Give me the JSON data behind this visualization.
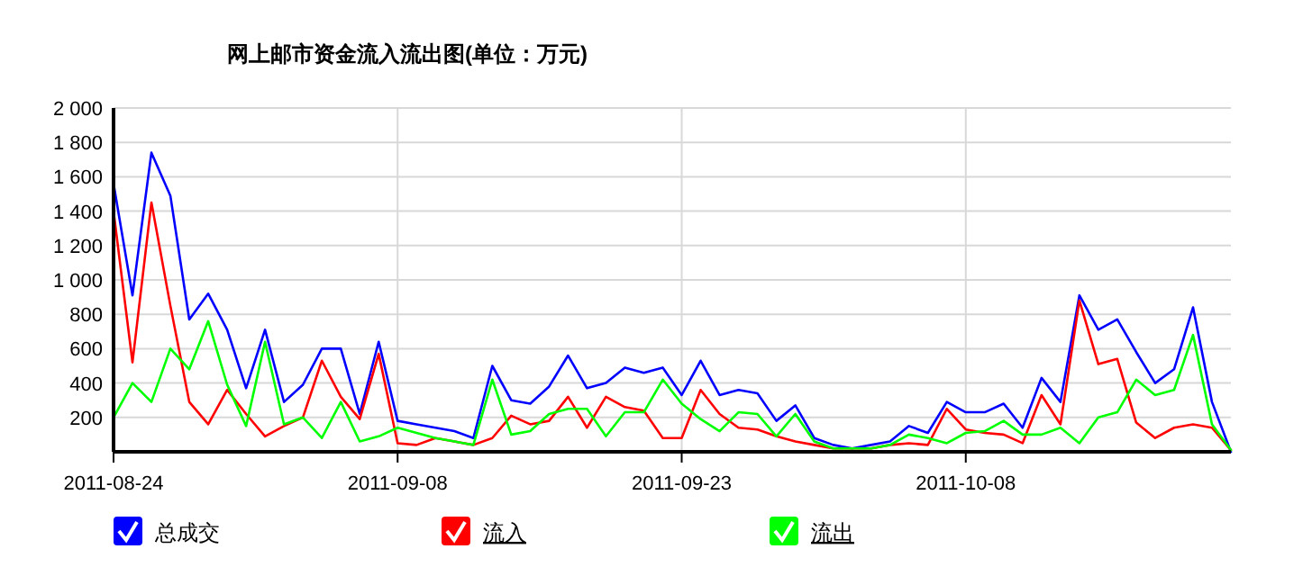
{
  "chart_data": {
    "type": "line",
    "title": "网上邮市资金流入流出图(单位：万元)",
    "x": [
      "2011-08-24",
      "2011-08-25",
      "2011-08-26",
      "2011-08-27",
      "2011-08-28",
      "2011-08-29",
      "2011-08-30",
      "2011-08-31",
      "2011-09-01",
      "2011-09-02",
      "2011-09-03",
      "2011-09-04",
      "2011-09-05",
      "2011-09-06",
      "2011-09-07",
      "2011-09-08",
      "2011-09-09",
      "2011-09-10",
      "2011-09-11",
      "2011-09-12",
      "2011-09-13",
      "2011-09-14",
      "2011-09-15",
      "2011-09-16",
      "2011-09-17",
      "2011-09-18",
      "2011-09-19",
      "2011-09-20",
      "2011-09-21",
      "2011-09-22",
      "2011-09-23",
      "2011-09-24",
      "2011-09-25",
      "2011-09-26",
      "2011-09-27",
      "2011-09-28",
      "2011-09-29",
      "2011-09-30",
      "2011-10-01",
      "2011-10-02",
      "2011-10-03",
      "2011-10-04",
      "2011-10-05",
      "2011-10-06",
      "2011-10-07",
      "2011-10-08",
      "2011-10-09",
      "2011-10-10",
      "2011-10-11",
      "2011-10-12",
      "2011-10-13",
      "2011-10-14",
      "2011-10-15",
      "2011-10-16",
      "2011-10-17",
      "2011-10-18",
      "2011-10-19",
      "2011-10-20",
      "2011-10-21",
      "2011-10-22"
    ],
    "series": [
      {
        "name": "总成交",
        "color": "#0000ff",
        "values": [
          1560,
          910,
          1740,
          1490,
          770,
          920,
          710,
          370,
          710,
          290,
          390,
          600,
          600,
          220,
          640,
          180,
          160,
          140,
          120,
          80,
          500,
          300,
          280,
          380,
          560,
          370,
          400,
          490,
          460,
          490,
          330,
          530,
          330,
          360,
          340,
          180,
          270,
          80,
          40,
          20,
          40,
          60,
          150,
          110,
          290,
          230,
          230,
          280,
          140,
          430,
          290,
          910,
          710,
          770,
          580,
          400,
          480,
          840,
          290,
          0
        ]
      },
      {
        "name": "流入",
        "color": "#ff0000",
        "values": [
          1400,
          520,
          1450,
          850,
          290,
          160,
          360,
          220,
          90,
          150,
          200,
          530,
          320,
          190,
          570,
          50,
          40,
          80,
          60,
          40,
          80,
          210,
          160,
          180,
          320,
          140,
          320,
          260,
          240,
          80,
          80,
          360,
          220,
          140,
          130,
          90,
          60,
          40,
          20,
          20,
          20,
          40,
          50,
          40,
          250,
          130,
          110,
          100,
          50,
          330,
          160,
          880,
          510,
          540,
          170,
          80,
          140,
          160,
          140,
          10
        ]
      },
      {
        "name": "流出",
        "color": "#00ff00",
        "values": [
          200,
          400,
          290,
          600,
          480,
          760,
          390,
          150,
          640,
          160,
          200,
          80,
          290,
          60,
          90,
          140,
          110,
          80,
          60,
          40,
          420,
          100,
          120,
          220,
          250,
          250,
          90,
          230,
          230,
          420,
          280,
          190,
          120,
          230,
          220,
          90,
          220,
          60,
          20,
          20,
          20,
          40,
          100,
          80,
          50,
          110,
          120,
          180,
          100,
          100,
          140,
          50,
          200,
          230,
          420,
          330,
          360,
          680,
          160,
          10
        ]
      }
    ],
    "xlim": [
      "2011-08-24",
      "2011-10-22"
    ],
    "xticks": [
      "2011-08-24",
      "2011-09-08",
      "2011-09-23",
      "2011-10-08"
    ],
    "ylim": [
      0,
      2000
    ],
    "yticks": [
      {
        "value": 0,
        "label": null
      },
      {
        "value": 200,
        "label": "200"
      },
      {
        "value": 400,
        "label": "400"
      },
      {
        "value": 600,
        "label": "600"
      },
      {
        "value": 800,
        "label": "800"
      },
      {
        "value": 1000,
        "label": "1 000"
      },
      {
        "value": 1200,
        "label": "1 200"
      },
      {
        "value": 1400,
        "label": "1 400"
      },
      {
        "value": 1600,
        "label": "1 600"
      },
      {
        "value": 1800,
        "label": "1 800"
      },
      {
        "value": 2000,
        "label": "2 000"
      }
    ],
    "grid": true,
    "legend": "bottom",
    "marker": "none",
    "line_style": "solid"
  }
}
